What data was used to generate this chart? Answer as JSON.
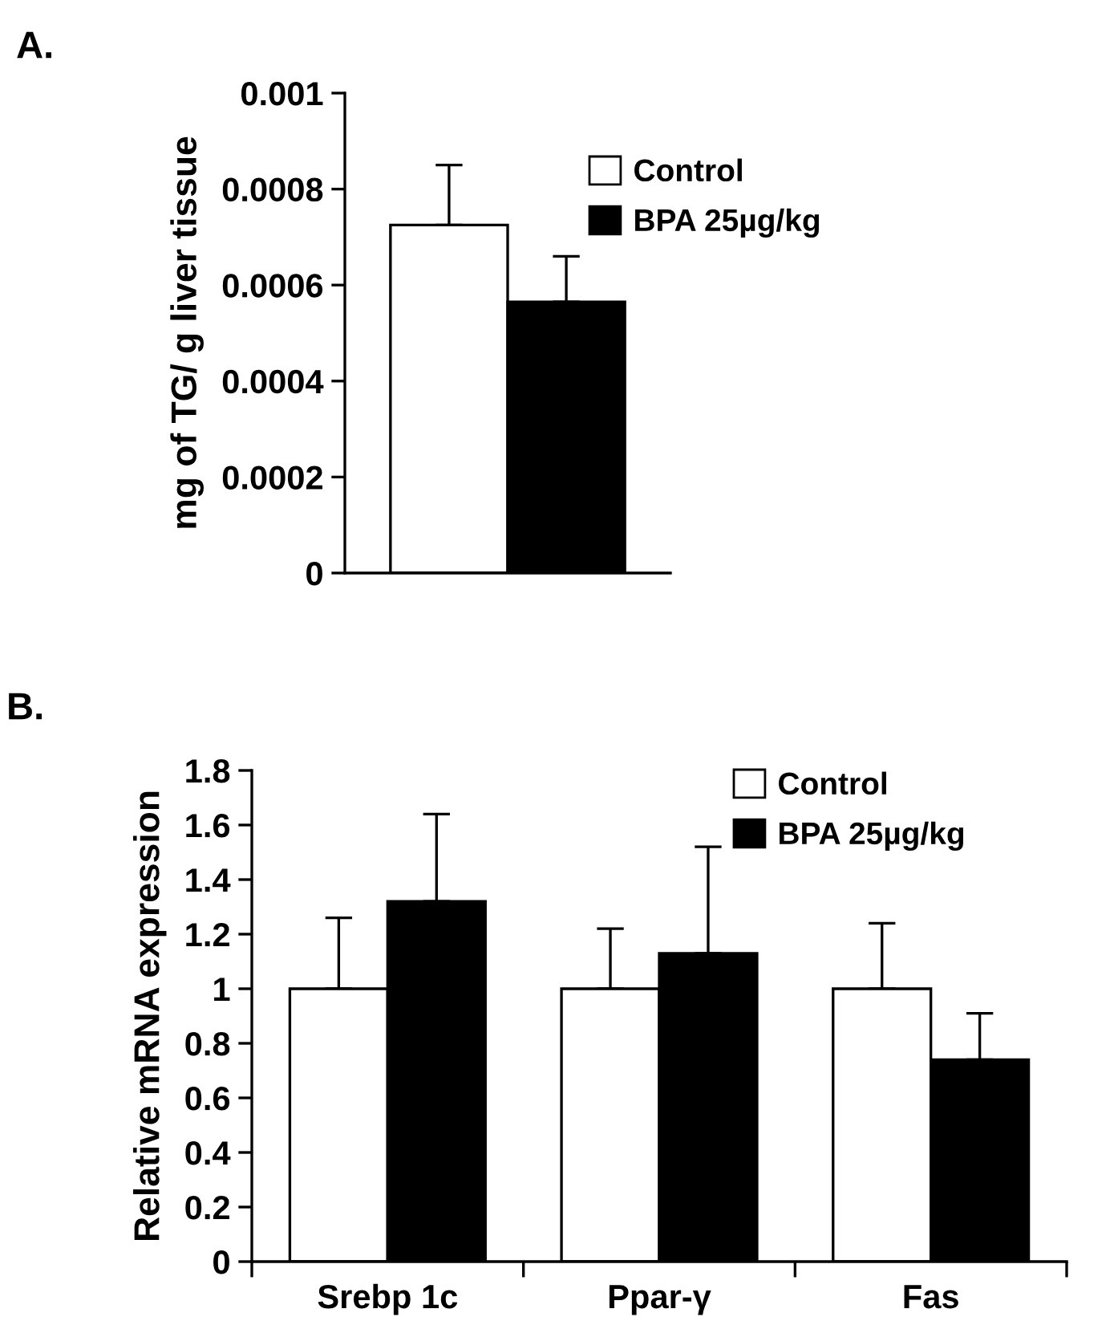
{
  "chart_data": [
    {
      "type": "bar",
      "title": "A.",
      "ylabel": "mg of TG/ g liver tissue",
      "categories": [
        null
      ],
      "series": [
        {
          "name": "Control",
          "color": "#ffffff",
          "values": [
            0.000725
          ],
          "errors": [
            [
              0.000725,
              0.00085
            ]
          ]
        },
        {
          "name": "BPA 25µg/kg",
          "color": "#000000",
          "values": [
            0.000565
          ],
          "errors": [
            [
              0.000565,
              0.00066
            ]
          ]
        }
      ],
      "ylim": [
        0,
        0.001
      ],
      "yticks": [
        0,
        0.0002,
        0.0004,
        0.0006,
        0.0008,
        0.001
      ],
      "grid": false,
      "legend": "top right"
    },
    {
      "type": "bar",
      "title": "B.",
      "ylabel": "Relative mRNA expression",
      "categories": [
        "Srebp 1c",
        "Ppar-γ",
        "Fas"
      ],
      "series": [
        {
          "name": "Control",
          "color": "#ffffff",
          "values": [
            1,
            1,
            1
          ],
          "errors": [
            [
              1,
              1.26
            ],
            [
              1,
              1.22
            ],
            [
              1,
              1.24
            ]
          ]
        },
        {
          "name": "BPA 25µg/kg",
          "color": "#000000",
          "values": [
            1.32,
            1.13,
            0.74
          ],
          "errors": [
            [
              1.32,
              1.64
            ],
            [
              1.13,
              1.52
            ],
            [
              0.74,
              0.91
            ]
          ]
        }
      ],
      "ylim": [
        0,
        1.8
      ],
      "yticks": [
        0,
        0.2,
        0.4,
        0.6,
        0.8,
        1,
        1.2,
        1.4,
        1.6,
        1.8
      ],
      "grid": false,
      "legend": "top right"
    }
  ]
}
